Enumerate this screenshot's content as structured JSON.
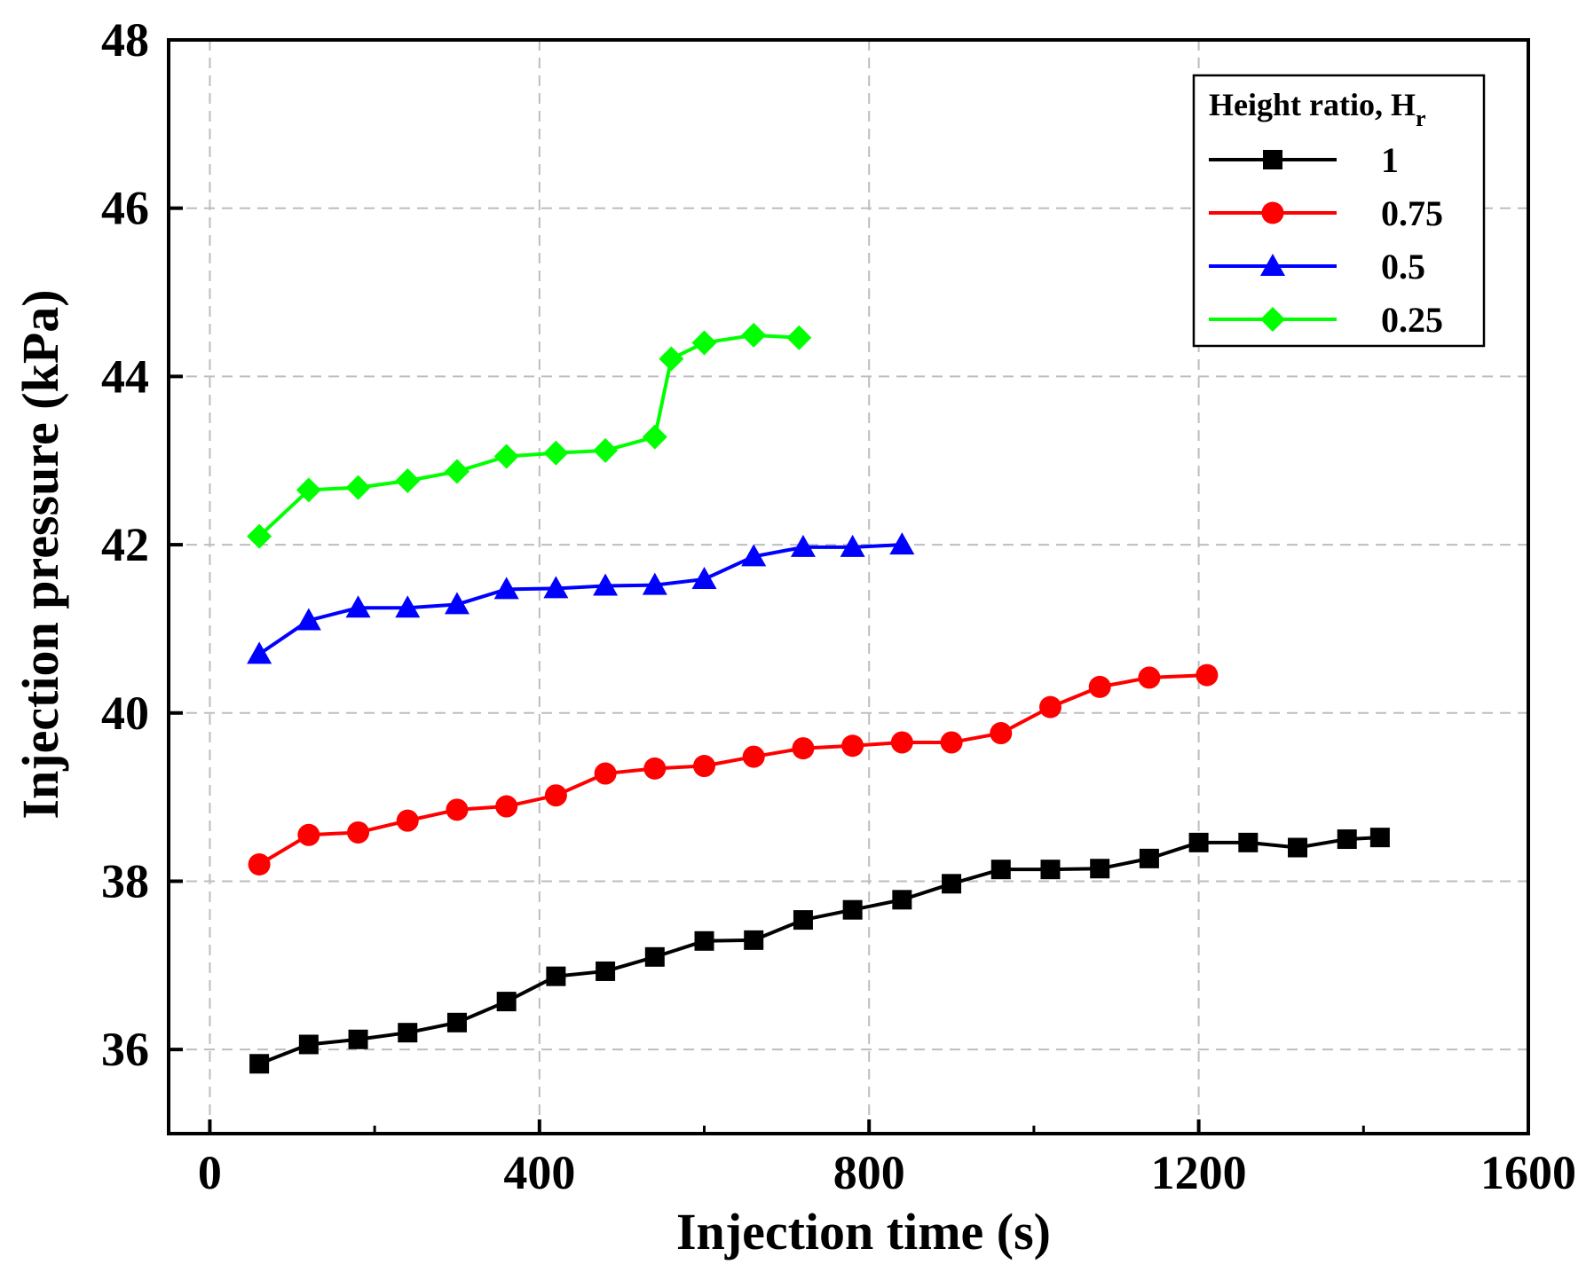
{
  "chart_data": {
    "type": "line",
    "xlabel": "Injection time (s)",
    "ylabel": "Injection pressure (kPa)",
    "xlim": [
      -50,
      1600
    ],
    "ylim": [
      35,
      48
    ],
    "xticks": [
      0,
      400,
      800,
      1200,
      1600
    ],
    "yticks": [
      36,
      38,
      40,
      42,
      44,
      46,
      48
    ],
    "x_minor_ticks": [
      200,
      600,
      1000,
      1400
    ],
    "grid": true,
    "legend": {
      "title": "Height ratio, H",
      "title_subscript": "r",
      "placement": "top-right"
    },
    "series": [
      {
        "name": "1",
        "color": "#000000",
        "marker": "square",
        "x": [
          60,
          120,
          180,
          240,
          300,
          360,
          420,
          480,
          540,
          600,
          660,
          720,
          780,
          840,
          900,
          960,
          1020,
          1080,
          1140,
          1200,
          1260,
          1320,
          1380,
          1420
        ],
        "y": [
          35.83,
          36.06,
          36.12,
          36.2,
          36.32,
          36.57,
          36.87,
          36.93,
          37.1,
          37.29,
          37.3,
          37.54,
          37.66,
          37.78,
          37.97,
          38.14,
          38.14,
          38.15,
          38.27,
          38.46,
          38.46,
          38.4,
          38.5,
          38.52
        ]
      },
      {
        "name": "0.75",
        "color": "#ff0000",
        "marker": "circle",
        "x": [
          60,
          120,
          180,
          240,
          300,
          360,
          420,
          480,
          540,
          600,
          660,
          720,
          780,
          840,
          900,
          960,
          1020,
          1080,
          1140,
          1210
        ],
        "y": [
          38.2,
          38.55,
          38.58,
          38.72,
          38.85,
          38.89,
          39.02,
          39.28,
          39.34,
          39.37,
          39.48,
          39.58,
          39.61,
          39.65,
          39.65,
          39.76,
          40.07,
          40.31,
          40.42,
          40.45
        ]
      },
      {
        "name": "0.5",
        "color": "#0000ff",
        "marker": "triangle",
        "x": [
          60,
          120,
          180,
          240,
          300,
          360,
          420,
          480,
          540,
          600,
          660,
          720,
          780,
          840
        ],
        "y": [
          40.7,
          41.1,
          41.25,
          41.25,
          41.29,
          41.47,
          41.48,
          41.51,
          41.52,
          41.59,
          41.86,
          41.97,
          41.97,
          42.0
        ]
      },
      {
        "name": "0.25",
        "color": "#00ff00",
        "marker": "diamond",
        "x": [
          60,
          120,
          180,
          240,
          300,
          360,
          420,
          480,
          540,
          560,
          600,
          660,
          715
        ],
        "y": [
          42.1,
          42.65,
          42.68,
          42.76,
          42.87,
          43.05,
          43.09,
          43.12,
          43.28,
          44.21,
          44.4,
          44.49,
          44.46
        ]
      }
    ]
  }
}
